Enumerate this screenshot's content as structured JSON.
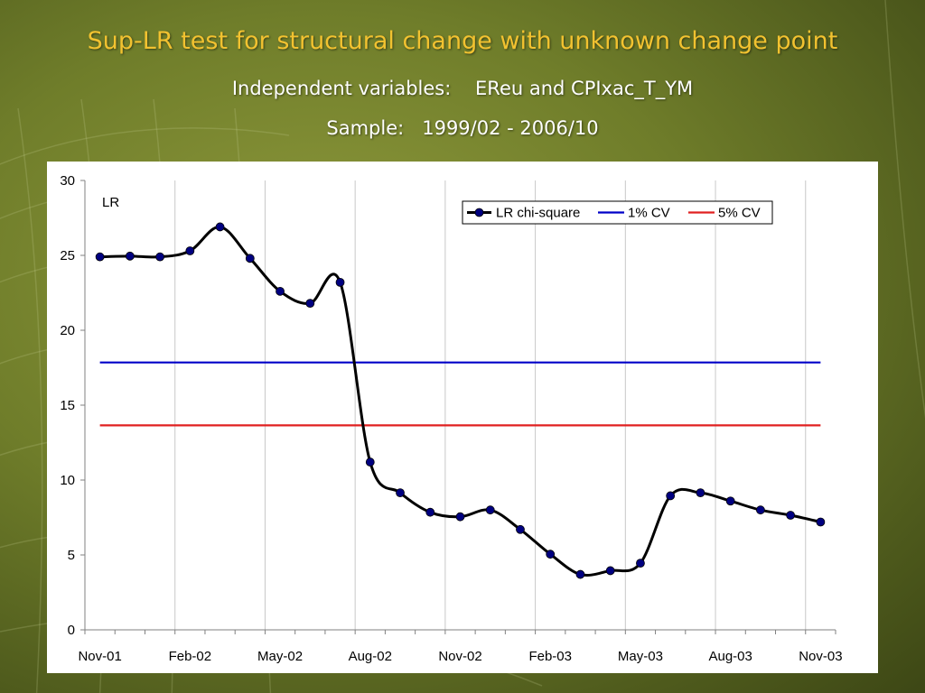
{
  "slide": {
    "title": "Sup-LR test for structural change with unknown change point",
    "subtitle_vars": "Independent variables:    EReu and CPIxac_T_YM",
    "subtitle_sample": "Sample:   1999/02 - 2006/10",
    "colors": {
      "title": "#f2c230",
      "subtitle": "#ffffff",
      "background": "#6f7d2a"
    }
  },
  "chart_data": {
    "type": "line",
    "title": "",
    "xlabel": "",
    "ylabel": "LR",
    "ylim": [
      0,
      30
    ],
    "yticks": [
      0,
      5,
      10,
      15,
      20,
      25,
      30
    ],
    "xtick_labels": [
      "Nov-01",
      "Feb-02",
      "May-02",
      "Aug-02",
      "Nov-02",
      "Feb-03",
      "May-03",
      "Aug-03",
      "Nov-03"
    ],
    "x": [
      "Nov-01",
      "Dec-01",
      "Jan-02",
      "Feb-02",
      "Mar-02",
      "Apr-02",
      "May-02",
      "Jun-02",
      "Jul-02",
      "Aug-02",
      "Sep-02",
      "Oct-02",
      "Nov-02",
      "Dec-02",
      "Jan-03",
      "Feb-03",
      "Mar-03",
      "Apr-03",
      "May-03",
      "Jun-03",
      "Jul-03",
      "Aug-03",
      "Sep-03",
      "Oct-03",
      "Nov-03"
    ],
    "grid": "vertical",
    "legend_position": "top-right",
    "series": [
      {
        "name": "LR chi-square",
        "color": "#000000",
        "marker_color": "#000080",
        "marker": "circle",
        "smooth": true,
        "values": [
          24.9,
          24.95,
          24.9,
          25.3,
          26.9,
          24.8,
          22.6,
          21.8,
          23.2,
          11.2,
          9.15,
          7.85,
          7.55,
          8.0,
          6.7,
          5.05,
          3.7,
          3.95,
          4.45,
          8.95,
          9.15,
          8.6,
          8.0,
          7.65,
          7.2
        ]
      },
      {
        "name": "1% CV",
        "color": "#0000c8",
        "marker": "none",
        "values": [
          17.85,
          17.85,
          17.85,
          17.85,
          17.85,
          17.85,
          17.85,
          17.85,
          17.85,
          17.85,
          17.85,
          17.85,
          17.85,
          17.85,
          17.85,
          17.85,
          17.85,
          17.85,
          17.85,
          17.85,
          17.85,
          17.85,
          17.85,
          17.85,
          17.85
        ]
      },
      {
        "name": "5% CV",
        "color": "#e02020",
        "marker": "none",
        "values": [
          13.65,
          13.65,
          13.65,
          13.65,
          13.65,
          13.65,
          13.65,
          13.65,
          13.65,
          13.65,
          13.65,
          13.65,
          13.65,
          13.65,
          13.65,
          13.65,
          13.65,
          13.65,
          13.65,
          13.65,
          13.65,
          13.65,
          13.65,
          13.65,
          13.65
        ]
      }
    ]
  }
}
